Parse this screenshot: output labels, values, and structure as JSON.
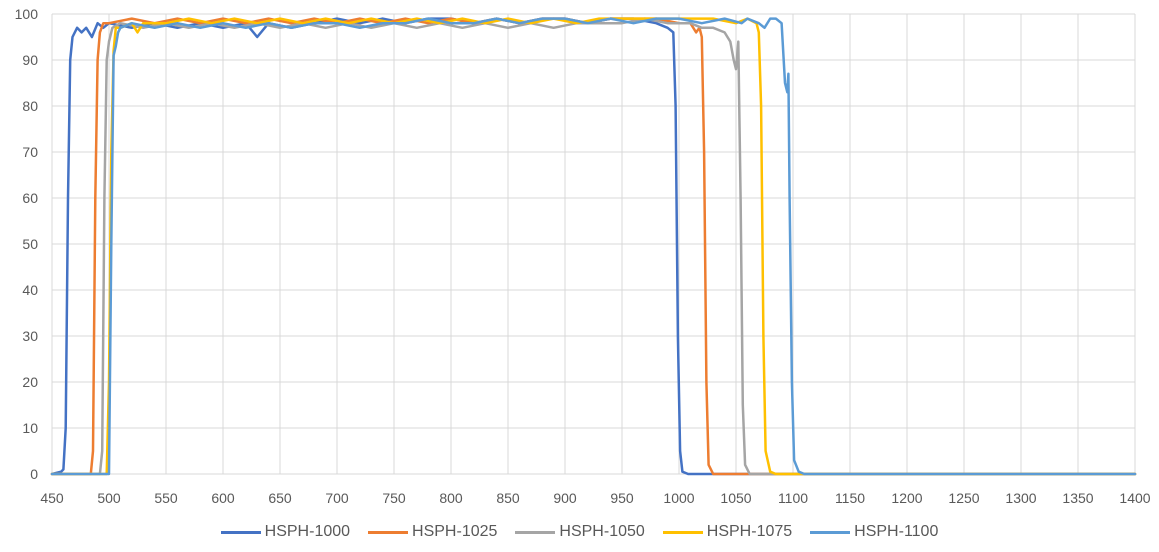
{
  "chart_data": {
    "type": "line",
    "title": "",
    "xlabel": "",
    "ylabel": "",
    "xlim": [
      450,
      1400
    ],
    "ylim": [
      0,
      100
    ],
    "x_ticks": [
      450,
      500,
      550,
      600,
      650,
      700,
      750,
      800,
      850,
      900,
      950,
      1000,
      1050,
      1100,
      1150,
      1200,
      1250,
      1300,
      1350,
      1400
    ],
    "y_ticks": [
      0,
      10,
      20,
      30,
      40,
      50,
      60,
      70,
      80,
      90,
      100
    ],
    "grid": true,
    "legend_position": "bottom",
    "series": [
      {
        "name": "HSPH-1000",
        "color": "#4472C4",
        "points": [
          [
            450,
            0
          ],
          [
            458,
            0.5
          ],
          [
            460,
            1
          ],
          [
            462,
            10
          ],
          [
            464,
            60
          ],
          [
            466,
            90
          ],
          [
            468,
            95
          ],
          [
            472,
            97
          ],
          [
            476,
            96
          ],
          [
            480,
            97
          ],
          [
            485,
            95
          ],
          [
            490,
            98
          ],
          [
            495,
            97
          ],
          [
            500,
            98
          ],
          [
            520,
            97
          ],
          [
            540,
            98
          ],
          [
            560,
            97
          ],
          [
            580,
            98
          ],
          [
            600,
            97
          ],
          [
            620,
            98
          ],
          [
            630,
            95
          ],
          [
            640,
            98
          ],
          [
            660,
            97
          ],
          [
            680,
            98
          ],
          [
            700,
            99
          ],
          [
            720,
            98
          ],
          [
            740,
            99
          ],
          [
            760,
            98
          ],
          [
            780,
            99
          ],
          [
            800,
            99
          ],
          [
            820,
            98
          ],
          [
            840,
            99
          ],
          [
            860,
            98
          ],
          [
            880,
            99
          ],
          [
            900,
            99
          ],
          [
            920,
            98
          ],
          [
            940,
            99
          ],
          [
            960,
            99
          ],
          [
            980,
            98
          ],
          [
            990,
            97
          ],
          [
            995,
            96
          ],
          [
            997,
            80
          ],
          [
            999,
            30
          ],
          [
            1001,
            5
          ],
          [
            1003,
            0.5
          ],
          [
            1008,
            0
          ],
          [
            1400,
            0
          ]
        ]
      },
      {
        "name": "HSPH-1025",
        "color": "#ED7D31",
        "points": [
          [
            450,
            0
          ],
          [
            484,
            0
          ],
          [
            486,
            5
          ],
          [
            488,
            60
          ],
          [
            490,
            90
          ],
          [
            492,
            96
          ],
          [
            495,
            98
          ],
          [
            500,
            98
          ],
          [
            520,
            99
          ],
          [
            540,
            98
          ],
          [
            560,
            99
          ],
          [
            580,
            98
          ],
          [
            600,
            99
          ],
          [
            620,
            98
          ],
          [
            640,
            99
          ],
          [
            660,
            98
          ],
          [
            680,
            99
          ],
          [
            700,
            98
          ],
          [
            720,
            99
          ],
          [
            740,
            98
          ],
          [
            760,
            99
          ],
          [
            780,
            98
          ],
          [
            800,
            99
          ],
          [
            820,
            98
          ],
          [
            840,
            99
          ],
          [
            860,
            98
          ],
          [
            880,
            99
          ],
          [
            900,
            99
          ],
          [
            920,
            98
          ],
          [
            940,
            99
          ],
          [
            960,
            99
          ],
          [
            980,
            99
          ],
          [
            1000,
            98
          ],
          [
            1010,
            98
          ],
          [
            1015,
            96
          ],
          [
            1018,
            97
          ],
          [
            1020,
            95
          ],
          [
            1022,
            70
          ],
          [
            1024,
            20
          ],
          [
            1026,
            2
          ],
          [
            1030,
            0
          ],
          [
            1400,
            0
          ]
        ]
      },
      {
        "name": "HSPH-1050",
        "color": "#A5A5A5",
        "points": [
          [
            450,
            0
          ],
          [
            492,
            0
          ],
          [
            494,
            5
          ],
          [
            496,
            60
          ],
          [
            498,
            90
          ],
          [
            500,
            94
          ],
          [
            503,
            97
          ],
          [
            510,
            98
          ],
          [
            530,
            97
          ],
          [
            550,
            98
          ],
          [
            570,
            97
          ],
          [
            590,
            98
          ],
          [
            610,
            97
          ],
          [
            630,
            98
          ],
          [
            650,
            97
          ],
          [
            670,
            98
          ],
          [
            690,
            97
          ],
          [
            710,
            98
          ],
          [
            730,
            97
          ],
          [
            750,
            98
          ],
          [
            770,
            97
          ],
          [
            790,
            98
          ],
          [
            810,
            97
          ],
          [
            830,
            98
          ],
          [
            850,
            97
          ],
          [
            870,
            98
          ],
          [
            890,
            97
          ],
          [
            910,
            98
          ],
          [
            930,
            98
          ],
          [
            950,
            98
          ],
          [
            970,
            99
          ],
          [
            990,
            98
          ],
          [
            1010,
            98
          ],
          [
            1020,
            97
          ],
          [
            1030,
            97
          ],
          [
            1040,
            96
          ],
          [
            1045,
            94
          ],
          [
            1048,
            90
          ],
          [
            1050,
            88
          ],
          [
            1052,
            94
          ],
          [
            1054,
            60
          ],
          [
            1056,
            15
          ],
          [
            1058,
            2
          ],
          [
            1062,
            0
          ],
          [
            1400,
            0
          ]
        ]
      },
      {
        "name": "HSPH-1075",
        "color": "#FFC000",
        "points": [
          [
            450,
            0
          ],
          [
            498,
            0
          ],
          [
            500,
            20
          ],
          [
            502,
            70
          ],
          [
            504,
            92
          ],
          [
            506,
            97
          ],
          [
            510,
            97
          ],
          [
            520,
            98
          ],
          [
            525,
            96
          ],
          [
            530,
            98
          ],
          [
            550,
            98
          ],
          [
            570,
            99
          ],
          [
            590,
            98
          ],
          [
            610,
            99
          ],
          [
            630,
            98
          ],
          [
            650,
            99
          ],
          [
            670,
            98
          ],
          [
            690,
            99
          ],
          [
            710,
            98
          ],
          [
            730,
            99
          ],
          [
            750,
            98
          ],
          [
            770,
            99
          ],
          [
            790,
            98
          ],
          [
            810,
            99
          ],
          [
            830,
            98
          ],
          [
            850,
            99
          ],
          [
            870,
            98
          ],
          [
            890,
            99
          ],
          [
            910,
            98
          ],
          [
            930,
            99
          ],
          [
            950,
            99
          ],
          [
            970,
            99
          ],
          [
            990,
            99
          ],
          [
            1010,
            99
          ],
          [
            1030,
            99
          ],
          [
            1050,
            98
          ],
          [
            1060,
            99
          ],
          [
            1068,
            98
          ],
          [
            1070,
            96
          ],
          [
            1072,
            80
          ],
          [
            1074,
            30
          ],
          [
            1076,
            5
          ],
          [
            1080,
            0.5
          ],
          [
            1085,
            0
          ],
          [
            1400,
            0
          ]
        ]
      },
      {
        "name": "HSPH-1100",
        "color": "#5B9BD5",
        "points": [
          [
            450,
            0
          ],
          [
            500,
            0
          ],
          [
            502,
            50
          ],
          [
            504,
            91
          ],
          [
            506,
            93
          ],
          [
            508,
            96
          ],
          [
            510,
            97
          ],
          [
            520,
            98
          ],
          [
            540,
            97
          ],
          [
            560,
            98
          ],
          [
            580,
            97
          ],
          [
            600,
            98
          ],
          [
            620,
            97
          ],
          [
            640,
            98
          ],
          [
            660,
            97
          ],
          [
            680,
            98
          ],
          [
            700,
            98
          ],
          [
            720,
            97
          ],
          [
            740,
            98
          ],
          [
            760,
            98
          ],
          [
            780,
            99
          ],
          [
            800,
            98
          ],
          [
            820,
            98
          ],
          [
            840,
            99
          ],
          [
            860,
            98
          ],
          [
            880,
            99
          ],
          [
            900,
            99
          ],
          [
            920,
            98
          ],
          [
            940,
            99
          ],
          [
            960,
            98
          ],
          [
            980,
            99
          ],
          [
            1000,
            99
          ],
          [
            1020,
            98
          ],
          [
            1040,
            99
          ],
          [
            1055,
            98
          ],
          [
            1060,
            99
          ],
          [
            1070,
            98
          ],
          [
            1075,
            97
          ],
          [
            1080,
            99
          ],
          [
            1085,
            99
          ],
          [
            1090,
            98
          ],
          [
            1093,
            85
          ],
          [
            1095,
            83
          ],
          [
            1096,
            87
          ],
          [
            1097,
            60
          ],
          [
            1099,
            20
          ],
          [
            1101,
            3
          ],
          [
            1105,
            0.5
          ],
          [
            1110,
            0
          ],
          [
            1400,
            0
          ]
        ]
      }
    ]
  }
}
